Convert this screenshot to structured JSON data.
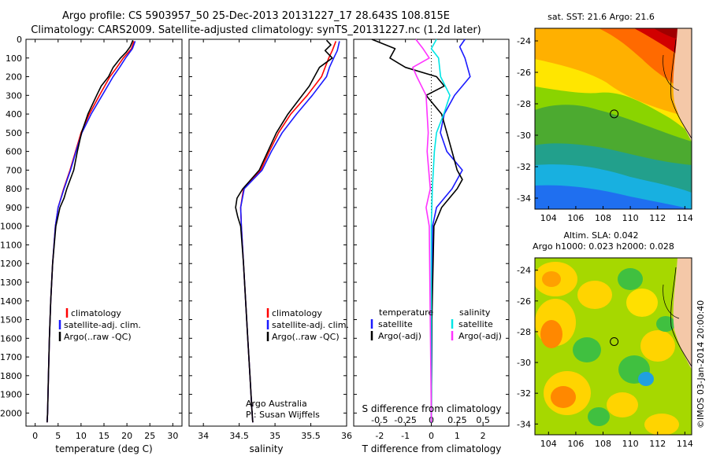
{
  "title": {
    "line1": "Argo profile: CS 5903957_50 25-Dec-2013 20131227_17 28.643S 108.815E",
    "line2": "Climatology: CARS2009. Satellite-adjusted climatology: synTS_20131227.nc (1.2d later)"
  },
  "colors": {
    "climatology": "#ff0000",
    "satellite": "#1a1aff",
    "argo": "#000000",
    "salinity_satellite": "#00e5e5",
    "salinity_argo": "#ff33ff"
  },
  "chart_data": [
    {
      "type": "line",
      "name": "temperature-profile",
      "xlabel": "temperature (deg C)",
      "xlim": [
        -2,
        32
      ],
      "ylim": [
        2070,
        0
      ],
      "xticks": [
        "0",
        "5",
        "10",
        "15",
        "20",
        "25",
        "30"
      ],
      "yticks": [
        "0",
        "100",
        "200",
        "300",
        "400",
        "500",
        "600",
        "700",
        "800",
        "900",
        "1000",
        "1100",
        "1200",
        "1300",
        "1400",
        "1500",
        "1600",
        "1700",
        "1800",
        "1900",
        "2000"
      ],
      "legend": [
        "climatology",
        "satellite-adj. clim.",
        "Argo(..raw -QC)"
      ],
      "series": [
        {
          "name": "climatology",
          "color": "#ff0000",
          "depth": [
            10,
            50,
            100,
            150,
            200,
            300,
            400,
            500,
            600,
            700,
            800,
            900,
            1000,
            1200,
            1400,
            1600,
            1800,
            2000,
            2050
          ],
          "values": [
            21.5,
            21.0,
            19.2,
            17.8,
            16.3,
            14.0,
            11.8,
            10.0,
            8.8,
            7.6,
            6.2,
            5.0,
            4.4,
            3.8,
            3.4,
            3.1,
            2.9,
            2.7,
            2.6
          ]
        },
        {
          "name": "satellite-adj. clim.",
          "color": "#1a1aff",
          "depth": [
            10,
            50,
            100,
            150,
            200,
            300,
            400,
            500,
            600,
            700,
            800,
            900,
            1000,
            1200,
            1400,
            1600,
            1800,
            2000,
            2050
          ],
          "values": [
            21.8,
            21.2,
            19.7,
            18.4,
            17.0,
            14.6,
            12.2,
            10.2,
            8.9,
            7.7,
            6.3,
            5.0,
            4.4,
            3.8,
            3.4,
            3.1,
            2.9,
            2.7,
            2.6
          ]
        },
        {
          "name": "Argo(..raw -QC)",
          "color": "#000000",
          "depth": [
            5,
            40,
            70,
            100,
            150,
            200,
            250,
            300,
            400,
            500,
            600,
            700,
            800,
            850,
            900,
            1000,
            1200,
            1400,
            1600,
            1800,
            2000,
            2050
          ],
          "values": [
            21.3,
            20.7,
            19.8,
            18.6,
            17.0,
            16.0,
            14.4,
            13.4,
            11.5,
            10.1,
            9.2,
            8.4,
            6.9,
            6.3,
            5.4,
            4.5,
            3.8,
            3.4,
            3.1,
            2.9,
            2.7,
            2.6
          ]
        }
      ]
    },
    {
      "type": "line",
      "name": "salinity-profile",
      "xlabel": "salinity",
      "xlim": [
        33.8,
        36.0
      ],
      "ylim": [
        2070,
        0
      ],
      "xticks": [
        "34",
        "34.5",
        "35",
        "35.5",
        "36"
      ],
      "legend": [
        "climatology",
        "satellite-adj. clim.",
        "Argo(..raw -QC)"
      ],
      "annotation": [
        "Argo Australia",
        "PI: Susan Wijffels"
      ],
      "series": [
        {
          "name": "climatology",
          "color": "#ff0000",
          "depth": [
            10,
            60,
            100,
            150,
            200,
            300,
            400,
            500,
            600,
            700,
            800,
            900,
            1000,
            1200,
            1400,
            1600,
            1800,
            2000,
            2050
          ],
          "values": [
            35.85,
            35.8,
            35.75,
            35.7,
            35.65,
            35.45,
            35.22,
            35.05,
            34.92,
            34.8,
            34.56,
            34.52,
            34.53,
            34.56,
            34.59,
            34.62,
            34.65,
            34.68,
            34.69
          ]
        },
        {
          "name": "satellite-adj. clim.",
          "color": "#1a1aff",
          "depth": [
            10,
            60,
            100,
            150,
            200,
            300,
            400,
            500,
            600,
            700,
            800,
            900,
            1000,
            1200,
            1400,
            1600,
            1800,
            2000,
            2050
          ],
          "values": [
            35.9,
            35.87,
            35.82,
            35.76,
            35.72,
            35.52,
            35.3,
            35.1,
            34.95,
            34.82,
            34.57,
            34.52,
            34.53,
            34.56,
            34.59,
            34.62,
            34.65,
            34.68,
            34.69
          ]
        },
        {
          "name": "Argo(..raw -QC)",
          "color": "#000000",
          "depth": [
            5,
            30,
            60,
            100,
            150,
            200,
            250,
            300,
            400,
            500,
            600,
            700,
            800,
            850,
            900,
            950,
            1000,
            1200,
            1400,
            1600,
            1800,
            2000,
            2050
          ],
          "values": [
            35.72,
            35.78,
            35.7,
            35.8,
            35.62,
            35.55,
            35.48,
            35.38,
            35.18,
            35.02,
            34.9,
            34.78,
            34.55,
            34.47,
            34.45,
            34.48,
            34.52,
            34.56,
            34.59,
            34.62,
            34.65,
            34.68,
            34.69
          ]
        }
      ]
    },
    {
      "type": "line",
      "name": "difference-profile",
      "xlabel_top": "S difference from climatology",
      "xticks_top": [
        "-0.5",
        "-0.25",
        "0",
        "0.25",
        "0.5"
      ],
      "xlabel": "T difference from climatology",
      "xticks": [
        "-2",
        "-1",
        "0",
        "1",
        "2"
      ],
      "xlim": [
        -3,
        3
      ],
      "ylim": [
        2070,
        0
      ],
      "legend_headers": [
        "temperature",
        "salinity"
      ],
      "legend": [
        "satellite",
        "Argo(-adj)",
        "satellite",
        "Argo(-adj)"
      ],
      "series": [
        {
          "name": "T satellite",
          "color": "#1a1aff",
          "depth": [
            0,
            40,
            100,
            200,
            300,
            400,
            500,
            600,
            700,
            800,
            900,
            1000,
            1500,
            2000,
            2050
          ],
          "values": [
            1.3,
            1.1,
            1.3,
            1.5,
            0.9,
            0.5,
            0.35,
            0.6,
            1.2,
            0.8,
            0.2,
            0.05,
            0.02,
            0.0,
            0.0
          ]
        },
        {
          "name": "T Argo(-adj)",
          "color": "#000000",
          "depth": [
            0,
            50,
            100,
            150,
            200,
            250,
            300,
            400,
            500,
            600,
            700,
            750,
            800,
            900,
            1000,
            1500,
            2000,
            2050
          ],
          "values": [
            -2.3,
            -1.4,
            -1.6,
            -1.0,
            0.2,
            0.5,
            -0.2,
            0.4,
            0.6,
            0.8,
            1.0,
            1.2,
            1.0,
            0.4,
            0.1,
            0.02,
            0.0,
            0.0
          ]
        },
        {
          "name": "S satellite",
          "color": "#00e5e5",
          "depth": [
            0,
            50,
            100,
            200,
            300,
            400,
            500,
            600,
            800,
            1000,
            1500,
            2000,
            2050
          ],
          "values": [
            0.05,
            0.0,
            0.07,
            0.09,
            0.18,
            0.12,
            0.05,
            0.03,
            0.01,
            0.0,
            0.0,
            0.0,
            0.0
          ]
        },
        {
          "name": "S Argo(-adj)",
          "color": "#ff33ff",
          "depth": [
            0,
            50,
            100,
            150,
            200,
            300,
            400,
            500,
            600,
            800,
            900,
            1000,
            1500,
            2000,
            2050
          ],
          "values": [
            -0.15,
            -0.08,
            -0.02,
            -0.18,
            -0.14,
            -0.05,
            -0.04,
            -0.03,
            -0.04,
            -0.01,
            -0.05,
            -0.02,
            -0.01,
            0.0,
            0.0
          ]
        }
      ]
    },
    {
      "type": "heatmap",
      "name": "sst-map",
      "title": "sat. SST: 21.6  Argo: 21.6",
      "xticks": [
        "104",
        "106",
        "108",
        "110",
        "112",
        "114"
      ],
      "yticks": [
        "-24",
        "-26",
        "-28",
        "-30",
        "-32",
        "-34"
      ],
      "xlim": [
        103,
        114.5
      ],
      "ylim": [
        -34.7,
        -23.2
      ],
      "argo_position": {
        "lon": 108.815,
        "lat": -28.643
      }
    },
    {
      "type": "heatmap",
      "name": "sla-map",
      "title_lines": [
        "Altim. SLA: 0.042",
        "Argo h1000: 0.023 h2000: 0.028"
      ],
      "xticks": [
        "104",
        "106",
        "108",
        "110",
        "112",
        "114"
      ],
      "yticks": [
        "-24",
        "-26",
        "-28",
        "-30",
        "-32",
        "-34"
      ],
      "xlim": [
        103,
        114.5
      ],
      "ylim": [
        -34.7,
        -23.2
      ],
      "argo_position": {
        "lon": 108.815,
        "lat": -28.643
      }
    }
  ],
  "side_label": "©IMOS 03-Jan-2014 20:00:40"
}
